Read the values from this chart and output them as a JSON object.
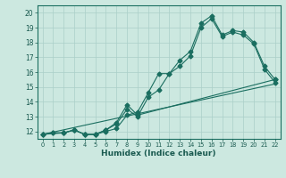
{
  "xlabel": "Humidex (Indice chaleur)",
  "bg_color": "#cce8e0",
  "grid_color": "#aacfc8",
  "line_color": "#1a6e60",
  "xlim": [
    -0.5,
    22.5
  ],
  "ylim": [
    11.5,
    20.5
  ],
  "xticks": [
    0,
    1,
    2,
    3,
    4,
    5,
    6,
    7,
    8,
    9,
    10,
    11,
    12,
    13,
    14,
    15,
    16,
    17,
    18,
    19,
    20,
    21,
    22
  ],
  "yticks": [
    12,
    13,
    14,
    15,
    16,
    17,
    18,
    19,
    20
  ],
  "line1_x": [
    0,
    1,
    2,
    3,
    4,
    5,
    6,
    7,
    8,
    9,
    10,
    11,
    12,
    13,
    14,
    15,
    16,
    17,
    18,
    19,
    20,
    21,
    22
  ],
  "line1_y": [
    11.8,
    11.9,
    11.9,
    12.1,
    11.8,
    11.8,
    12.1,
    12.5,
    13.5,
    13.0,
    14.3,
    14.8,
    15.9,
    16.8,
    17.4,
    19.3,
    19.8,
    18.5,
    18.8,
    18.7,
    18.0,
    16.4,
    15.5
  ],
  "line2_x": [
    0,
    1,
    2,
    3,
    4,
    5,
    6,
    7,
    8,
    9,
    10,
    11,
    12,
    13,
    14,
    15,
    16,
    17,
    18,
    19,
    20,
    21,
    22
  ],
  "line2_y": [
    11.8,
    11.9,
    11.9,
    12.1,
    11.8,
    11.8,
    12.0,
    12.2,
    13.1,
    13.3,
    14.6,
    15.9,
    15.9,
    16.4,
    17.1,
    19.0,
    19.6,
    18.4,
    18.7,
    18.5,
    17.9,
    16.2,
    15.3
  ],
  "line3_x": [
    0,
    2,
    3,
    4,
    5,
    6,
    7,
    8,
    9,
    22
  ],
  "line3_y": [
    11.8,
    11.9,
    12.1,
    11.8,
    11.8,
    12.1,
    12.6,
    13.8,
    13.1,
    15.5
  ],
  "line4_x": [
    0,
    22
  ],
  "line4_y": [
    11.8,
    15.2
  ]
}
